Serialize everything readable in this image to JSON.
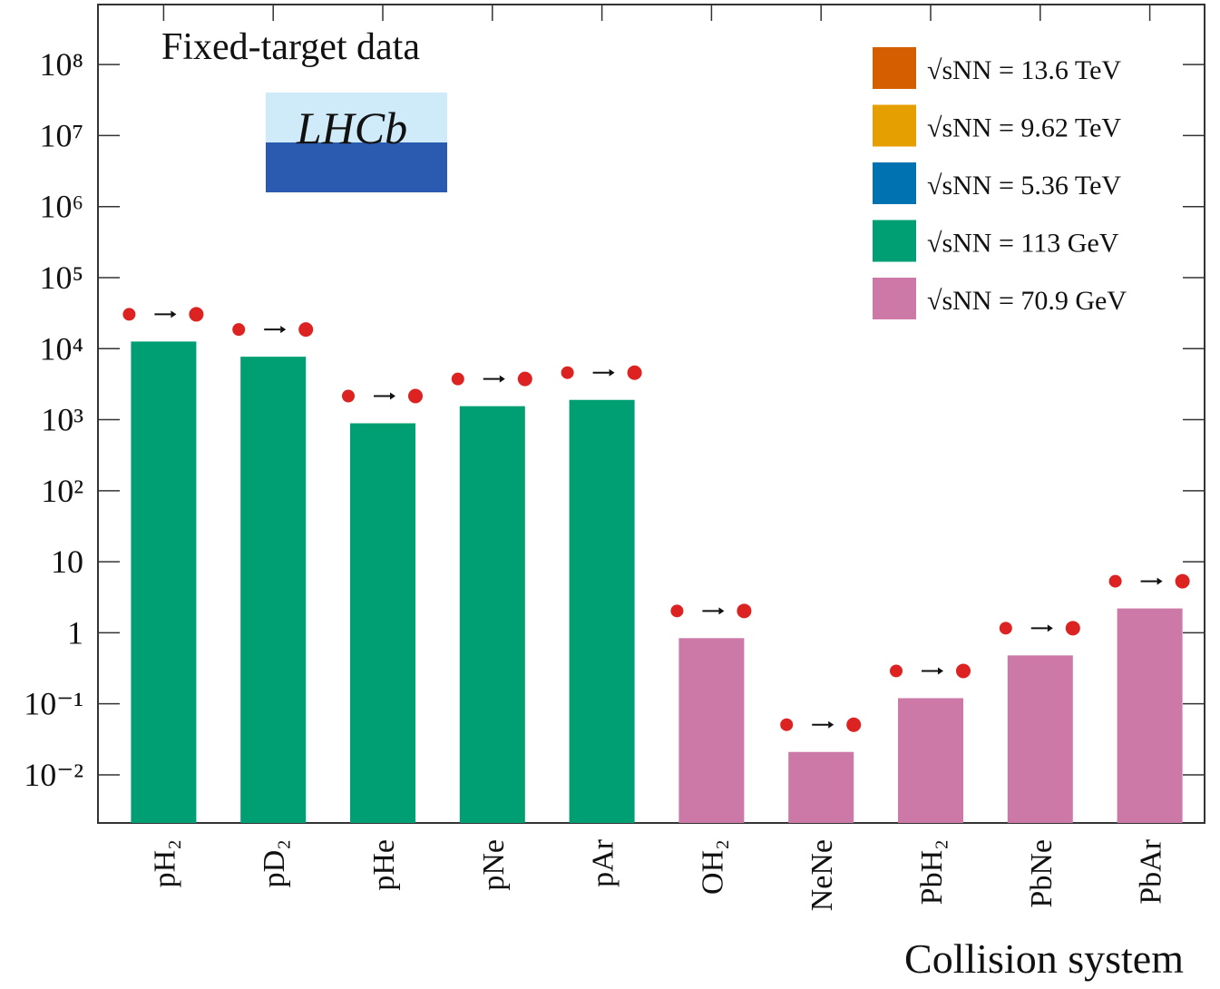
{
  "chart_data": {
    "type": "bar",
    "annotation": "Fixed-target data",
    "logo": "LHCb",
    "x_label": "Collision system",
    "log_scale": true,
    "legend_position": "upper right",
    "categories": [
      "pH₂",
      "pD₂",
      "pHe",
      "pNe",
      "pAr",
      "OH₂",
      "NeNe",
      "PbH₂",
      "PbNe",
      "PbAr"
    ],
    "series": [
      {
        "name": "√sNN = 13.6 TeV",
        "color": "#d55e00",
        "values": [
          null,
          null,
          null,
          null,
          null,
          null,
          null,
          null,
          null,
          null
        ]
      },
      {
        "name": "√sNN = 9.62 TeV",
        "color": "#e69f00",
        "values": [
          null,
          null,
          null,
          null,
          null,
          null,
          null,
          null,
          null,
          null
        ]
      },
      {
        "name": "√sNN = 5.36 TeV",
        "color": "#0072b2",
        "values": [
          null,
          null,
          null,
          null,
          null,
          null,
          null,
          null,
          null,
          null
        ]
      },
      {
        "name": "√sNN = 113 GeV",
        "color": "#009e73",
        "values": [
          12600,
          7700,
          890,
          1550,
          1900,
          null,
          null,
          null,
          null,
          null
        ]
      },
      {
        "name": "√sNN = 70.9 GeV",
        "color": "#cc79a7",
        "values": [
          null,
          null,
          null,
          null,
          null,
          0.84,
          0.021,
          0.12,
          0.48,
          2.2
        ]
      }
    ],
    "ylim": [
      0.0021,
      700000000
    ],
    "yticks": [
      {
        "value": 0.01,
        "label": "10⁻²"
      },
      {
        "value": 0.1,
        "label": "10⁻¹"
      },
      1,
      10,
      {
        "value": 100,
        "label": "10²"
      },
      {
        "value": 1000,
        "label": "10³"
      },
      {
        "value": 10000,
        "label": "10⁴"
      },
      {
        "value": 100000,
        "label": "10⁵"
      },
      {
        "value": 1000000,
        "label": "10⁶"
      },
      {
        "value": 10000000,
        "label": "10⁷"
      },
      {
        "value": 100000000,
        "label": "10⁸"
      }
    ]
  }
}
